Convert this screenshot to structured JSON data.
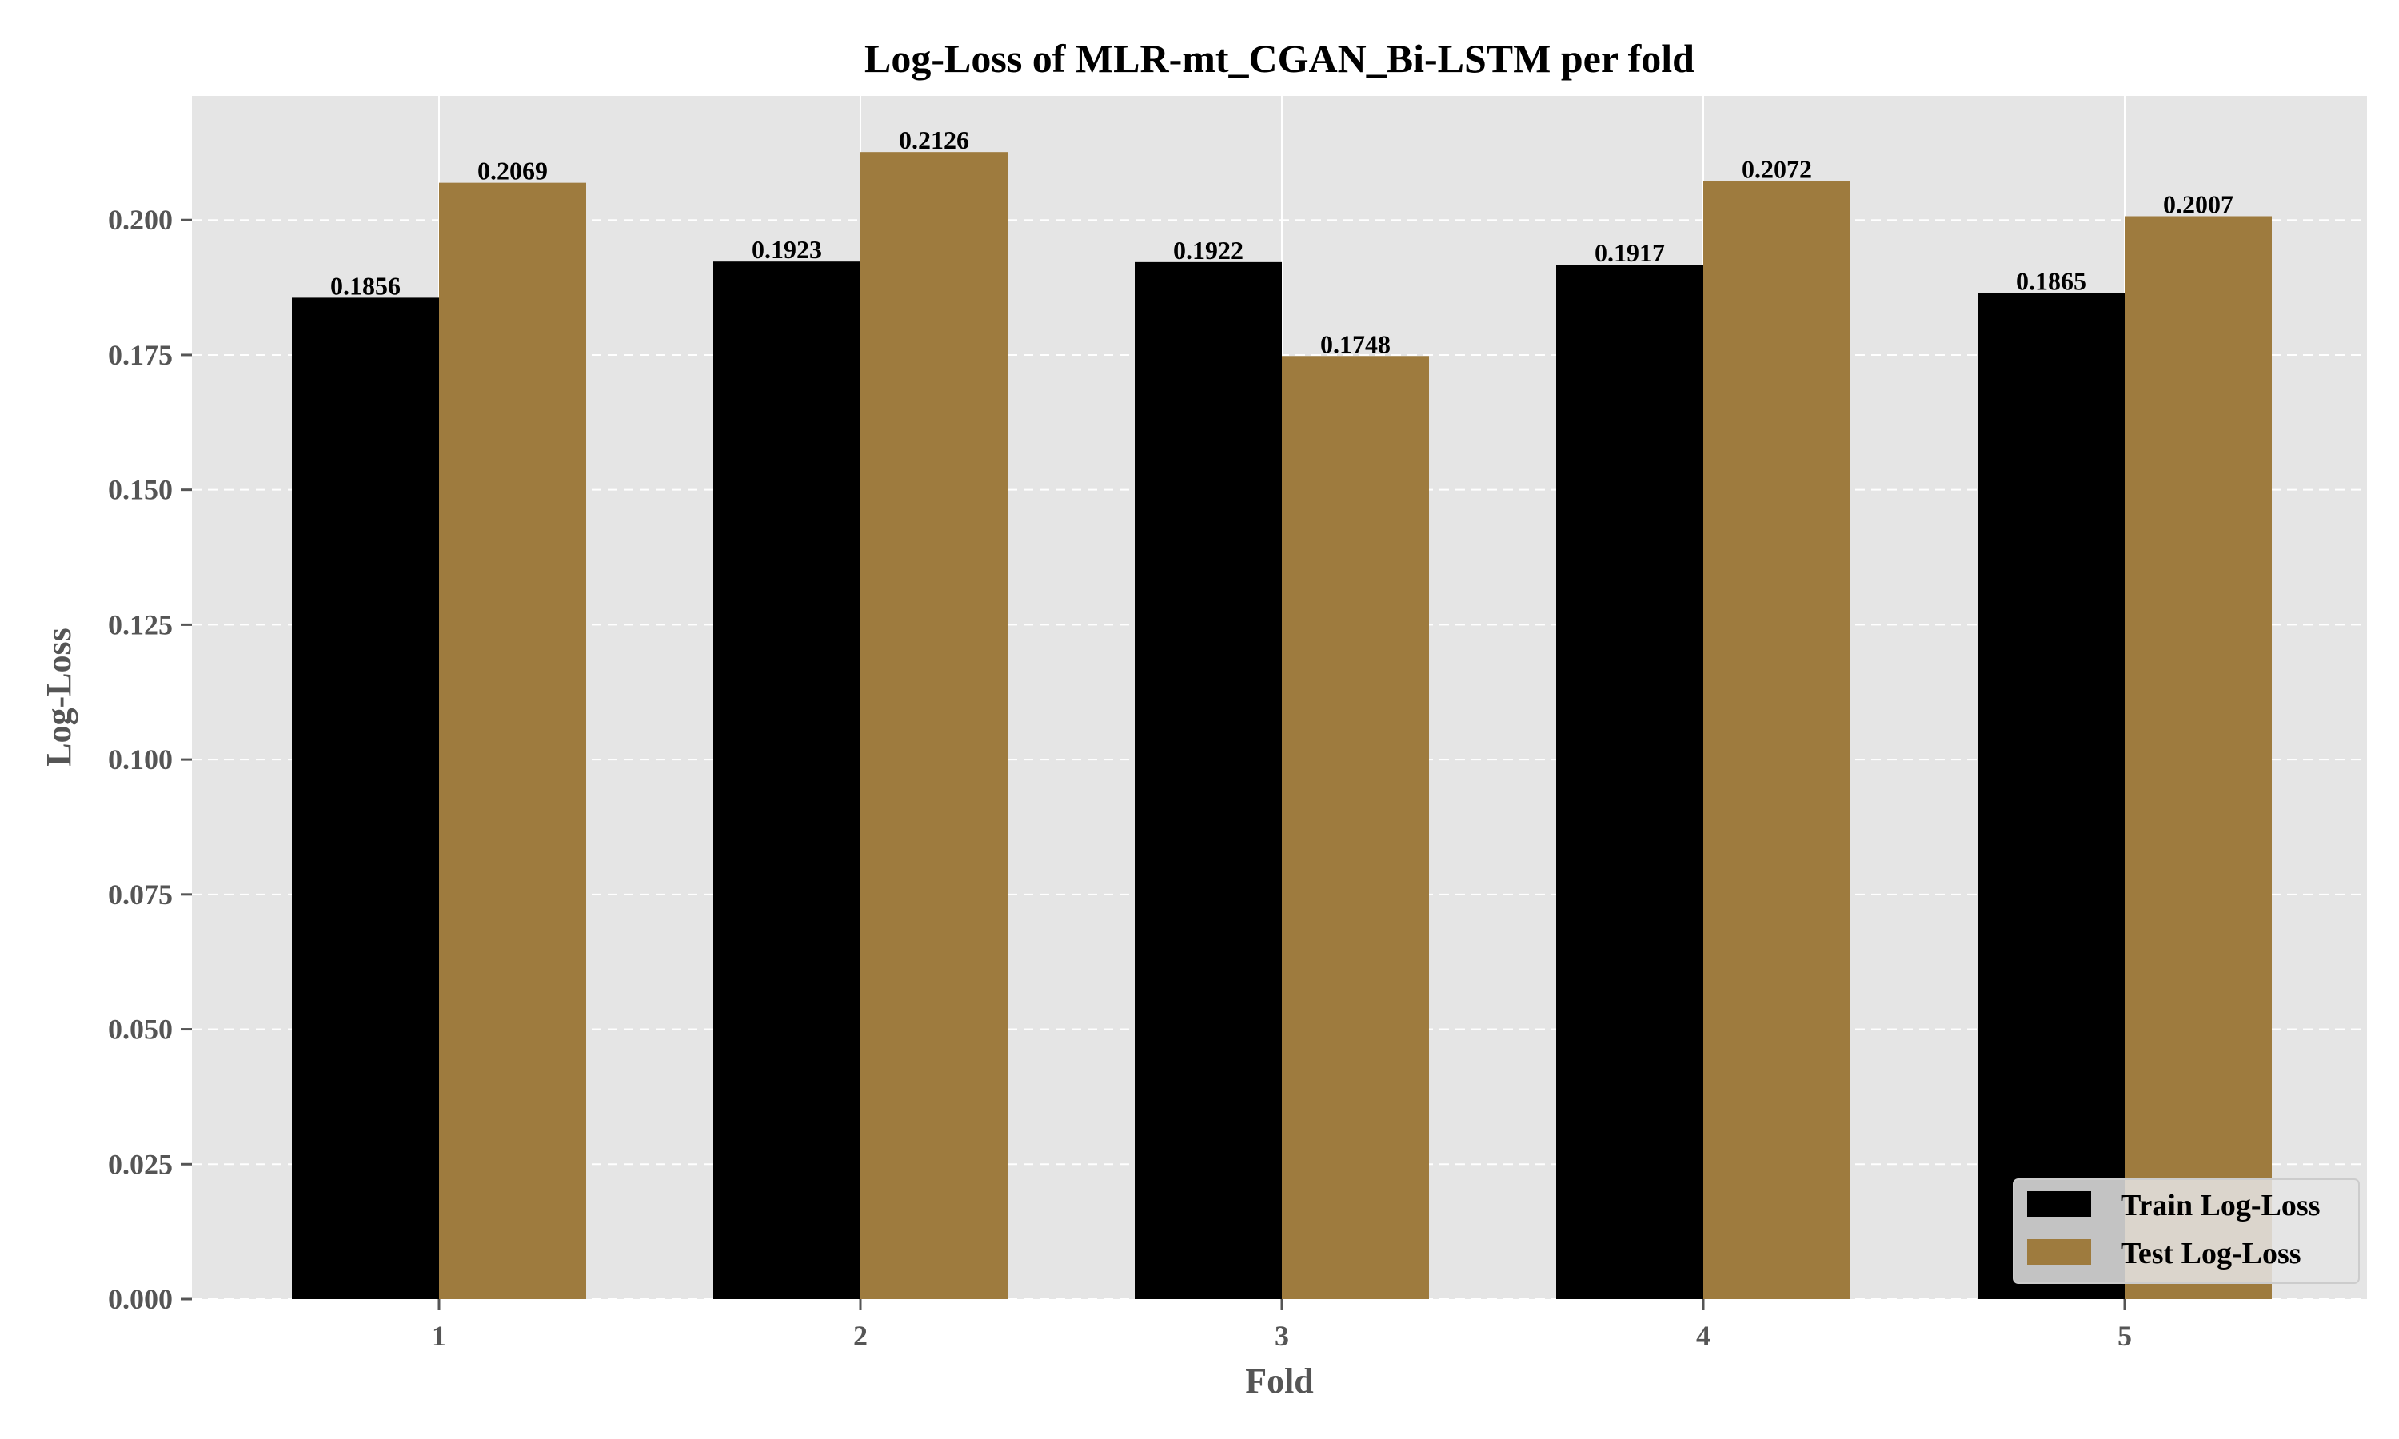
{
  "chart_data": {
    "type": "bar",
    "title": "Log-Loss of MLR-mt_CGAN_Bi-LSTM per fold",
    "xlabel": "Fold",
    "ylabel": "Log-Loss",
    "categories": [
      "1",
      "2",
      "3",
      "4",
      "5"
    ],
    "series": [
      {
        "name": "Train Log-Loss",
        "values": [
          0.1856,
          0.1923,
          0.1922,
          0.1917,
          0.1865
        ],
        "color": "#000000"
      },
      {
        "name": "Test Log-Loss",
        "values": [
          0.2069,
          0.2126,
          0.1748,
          0.2072,
          0.2007
        ],
        "color": "#9e7b3e"
      }
    ],
    "data_labels": {
      "Train Log-Loss": [
        "0.1856",
        "0.1923",
        "0.1922",
        "0.1917",
        "0.1865"
      ],
      "Test Log-Loss": [
        "0.2069",
        "0.2126",
        "0.1748",
        "0.2072",
        "0.2007"
      ]
    },
    "ylim": [
      0,
      0.223
    ],
    "yticks": [
      "0.000",
      "0.025",
      "0.050",
      "0.075",
      "0.100",
      "0.125",
      "0.150",
      "0.175",
      "0.200"
    ],
    "grid": true,
    "legend_position": "bottom-right",
    "background_color": "#e5e5e5"
  }
}
